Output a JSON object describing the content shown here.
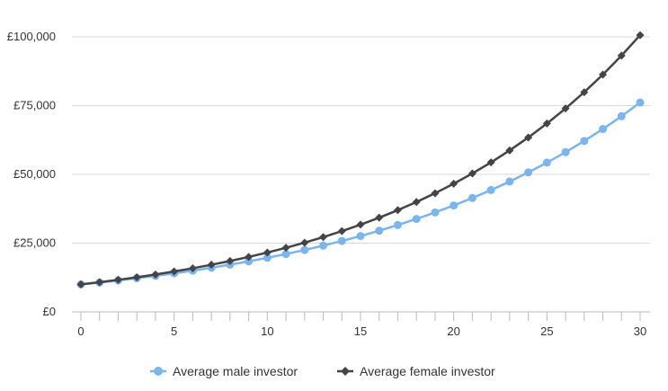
{
  "chart_data": {
    "type": "line",
    "x": [
      0,
      1,
      2,
      3,
      4,
      5,
      6,
      7,
      8,
      9,
      10,
      11,
      12,
      13,
      14,
      15,
      16,
      17,
      18,
      19,
      20,
      21,
      22,
      23,
      24,
      25,
      26,
      27,
      28,
      29,
      30
    ],
    "series": [
      {
        "name": "Average male investor",
        "color": "#7cb5ec",
        "marker": "circle",
        "values": [
          10000,
          10700,
          11449,
          12250,
          13108,
          14026,
          15007,
          16058,
          17182,
          18385,
          19672,
          21049,
          22522,
          24098,
          25785,
          27590,
          29522,
          31588,
          33799,
          36165,
          38697,
          41406,
          44304,
          47405,
          50724,
          54274,
          58074,
          62139,
          66488,
          71143,
          76123
        ]
      },
      {
        "name": "Average female investor",
        "color": "#434348",
        "marker": "diamond",
        "values": [
          10000,
          10800,
          11664,
          12597,
          13605,
          14693,
          15869,
          17138,
          18509,
          19990,
          21589,
          23316,
          25182,
          27196,
          29372,
          31722,
          34259,
          37000,
          39960,
          43157,
          46610,
          50338,
          54365,
          58715,
          63412,
          68485,
          73964,
          79881,
          86271,
          93173,
          100627
        ]
      }
    ],
    "y_ticks": [
      "£0",
      "£25,000",
      "£50,000",
      "£75,000",
      "£100,000"
    ],
    "x_ticks": [
      "0",
      "5",
      "10",
      "15",
      "20",
      "25",
      "30"
    ],
    "ylim": [
      0,
      100000
    ],
    "xlim": [
      0,
      30
    ],
    "grid": true,
    "legend": "bottom-center"
  }
}
